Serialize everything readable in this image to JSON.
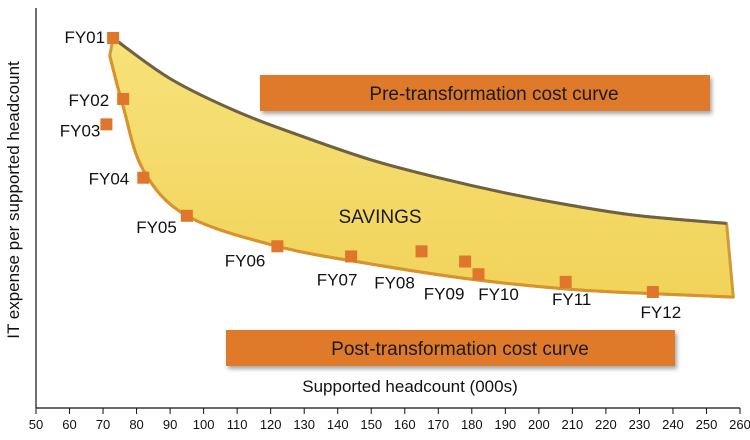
{
  "chart_data": {
    "type": "scatter",
    "title": "",
    "xlabel": "Supported headcount (000s)",
    "ylabel": "IT expense per supported headcount",
    "xlim": [
      50,
      260
    ],
    "xticks": [
      50,
      60,
      70,
      80,
      90,
      100,
      110,
      120,
      130,
      140,
      150,
      160,
      170,
      180,
      190,
      200,
      210,
      220,
      230,
      240,
      250,
      260
    ],
    "y_unit_note": "y-axis has no numeric scale; y values are relative (0 = lowest, 100 = highest)",
    "points": [
      {
        "label": "FY01",
        "x": 73,
        "y": 100
      },
      {
        "label": "FY02",
        "x": 76,
        "y": 76
      },
      {
        "label": "FY03",
        "x": 71,
        "y": 66
      },
      {
        "label": "FY04",
        "x": 82,
        "y": 45
      },
      {
        "label": "FY05",
        "x": 95,
        "y": 30
      },
      {
        "label": "FY06",
        "x": 122,
        "y": 18
      },
      {
        "label": "FY07",
        "x": 144,
        "y": 14
      },
      {
        "label": "FY08",
        "x": 165,
        "y": 16
      },
      {
        "label": "FY09",
        "x": 178,
        "y": 12
      },
      {
        "label": "FY10",
        "x": 182,
        "y": 7
      },
      {
        "label": "FY11",
        "x": 208,
        "y": 4
      },
      {
        "label": "FY12",
        "x": 234,
        "y": 0
      }
    ],
    "curves": {
      "pre_transformation": [
        {
          "x": 73,
          "y": 100
        },
        {
          "x": 90,
          "y": 84
        },
        {
          "x": 110,
          "y": 71
        },
        {
          "x": 130,
          "y": 61
        },
        {
          "x": 150,
          "y": 52
        },
        {
          "x": 170,
          "y": 45
        },
        {
          "x": 190,
          "y": 39
        },
        {
          "x": 210,
          "y": 34
        },
        {
          "x": 230,
          "y": 30
        },
        {
          "x": 256,
          "y": 27
        }
      ],
      "post_transformation": [
        {
          "x": 72,
          "y": 93
        },
        {
          "x": 76,
          "y": 73
        },
        {
          "x": 82,
          "y": 48
        },
        {
          "x": 95,
          "y": 30
        },
        {
          "x": 122,
          "y": 18
        },
        {
          "x": 150,
          "y": 11
        },
        {
          "x": 180,
          "y": 5
        },
        {
          "x": 210,
          "y": 1
        },
        {
          "x": 240,
          "y": -1
        },
        {
          "x": 258,
          "y": -2
        }
      ]
    },
    "annotations": {
      "savings": "SAVINGS",
      "pre_label": "Pre-transformation cost curve",
      "post_label": "Post-transformation cost curve"
    }
  },
  "colors": {
    "fill": "#f5da6a",
    "outline": "#7a6a3a",
    "marker": "#e0762b",
    "banner": "#de7a2a"
  }
}
